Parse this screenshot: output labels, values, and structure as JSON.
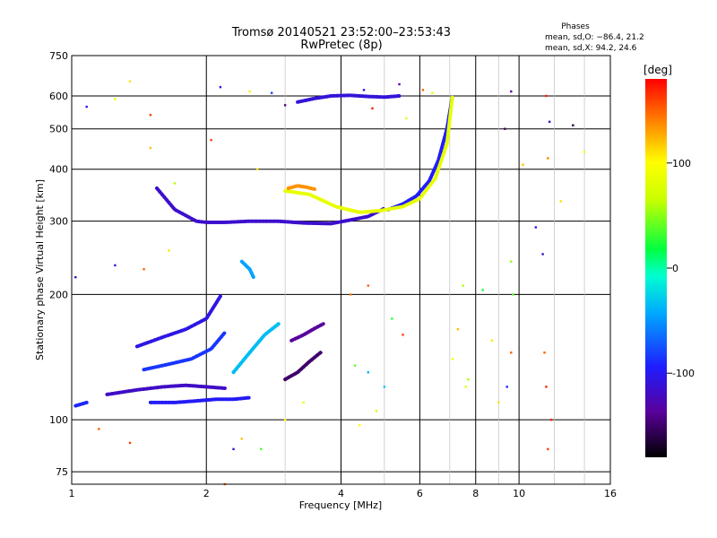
{
  "chart_data": {
    "type": "scatter",
    "title": "Tromsø 20140521 23:52:00–23:53:43",
    "subtitle": "RwPretec (8p)",
    "xlabel": "Frequency [MHz]",
    "ylabel": "Stationary phase Virtual Height [km]",
    "x_scale": "log",
    "y_scale": "log",
    "xlim": [
      1,
      16
    ],
    "ylim": [
      70,
      750
    ],
    "x_ticks": [
      1,
      2,
      4,
      6,
      8,
      10,
      16
    ],
    "y_ticks": [
      75,
      100,
      200,
      300,
      400,
      500,
      600,
      750
    ],
    "grid": true,
    "stats": {
      "heading": "Phases",
      "line_o": "mean, sd,O: −86.4, 21.2",
      "line_x": "mean, sd,X:  94.2, 24.6"
    },
    "colorbar": {
      "label": "[deg]",
      "range": [
        -180,
        180
      ],
      "ticks": [
        100,
        0,
        -100
      ],
      "colormap": "rainbow"
    },
    "traces": [
      {
        "x": [
          1.55,
          1.7,
          1.9,
          2.0,
          2.2,
          2.5,
          2.9,
          3.3,
          3.8,
          4.2,
          4.6,
          5.0
        ],
        "y": [
          360,
          320,
          300,
          298,
          298,
          300,
          300,
          297,
          296,
          302,
          308,
          322
        ],
        "phase": -115
      },
      {
        "x": [
          5.1,
          5.5,
          5.9,
          6.3,
          6.6,
          6.9,
          7.1
        ],
        "y": [
          320,
          330,
          345,
          375,
          420,
          500,
          600
        ],
        "phase": -95
      },
      {
        "x": [
          3.0,
          3.4,
          3.9,
          4.4,
          4.9,
          5.5,
          6.0,
          6.5,
          6.9,
          7.1
        ],
        "y": [
          355,
          348,
          325,
          315,
          318,
          325,
          340,
          380,
          460,
          600
        ],
        "phase": 85
      },
      {
        "x": [
          3.05,
          3.2,
          3.35,
          3.5
        ],
        "y": [
          360,
          365,
          362,
          358
        ],
        "phase": 135
      },
      {
        "x": [
          3.2,
          3.5,
          3.8,
          4.2,
          4.6,
          5.0,
          5.4
        ],
        "y": [
          580,
          592,
          600,
          602,
          598,
          596,
          600
        ],
        "phase": -110
      },
      {
        "x": [
          1.2,
          1.4,
          1.6,
          1.8,
          2.0,
          2.2
        ],
        "y": [
          115,
          118,
          120,
          121,
          120,
          119
        ],
        "phase": -118
      },
      {
        "x": [
          1.5,
          1.7,
          1.9,
          2.1,
          2.3,
          2.5
        ],
        "y": [
          110,
          110,
          111,
          112,
          112,
          113
        ],
        "phase": -98
      },
      {
        "x": [
          1.4,
          1.6,
          1.8,
          2.0,
          2.15
        ],
        "y": [
          150,
          158,
          165,
          175,
          198
        ],
        "phase": -105
      },
      {
        "x": [
          1.45,
          1.65,
          1.85,
          2.05,
          2.2
        ],
        "y": [
          132,
          136,
          140,
          148,
          162
        ],
        "phase": -85
      },
      {
        "x": [
          2.3,
          2.5,
          2.7,
          2.9
        ],
        "y": [
          130,
          145,
          160,
          170
        ],
        "phase": -35
      },
      {
        "x": [
          2.4,
          2.5,
          2.55
        ],
        "y": [
          240,
          230,
          220
        ],
        "phase": -45
      },
      {
        "x": [
          3.0,
          3.2,
          3.4,
          3.6
        ],
        "y": [
          125,
          130,
          138,
          145
        ],
        "phase": -150
      },
      {
        "x": [
          3.1,
          3.3,
          3.5,
          3.65
        ],
        "y": [
          155,
          160,
          166,
          170
        ],
        "phase": -135
      },
      {
        "x": [
          1.02,
          1.05,
          1.08
        ],
        "y": [
          108,
          109,
          110
        ],
        "phase": -90
      }
    ],
    "points": [
      {
        "x": 1.35,
        "y": 650,
        "phase": 110
      },
      {
        "x": 1.5,
        "y": 540,
        "phase": 160
      },
      {
        "x": 2.15,
        "y": 630,
        "phase": -100
      },
      {
        "x": 2.5,
        "y": 615,
        "phase": 105
      },
      {
        "x": 2.8,
        "y": 610,
        "phase": -80
      },
      {
        "x": 3.0,
        "y": 570,
        "phase": -140
      },
      {
        "x": 4.5,
        "y": 620,
        "phase": -110
      },
      {
        "x": 4.7,
        "y": 560,
        "phase": 170
      },
      {
        "x": 5.4,
        "y": 640,
        "phase": -130
      },
      {
        "x": 5.6,
        "y": 530,
        "phase": 90
      },
      {
        "x": 6.1,
        "y": 620,
        "phase": 150
      },
      {
        "x": 6.4,
        "y": 610,
        "phase": 80
      },
      {
        "x": 9.6,
        "y": 615,
        "phase": -130
      },
      {
        "x": 11.5,
        "y": 600,
        "phase": 170
      },
      {
        "x": 11.7,
        "y": 520,
        "phase": -120
      },
      {
        "x": 11.6,
        "y": 425,
        "phase": 140
      },
      {
        "x": 10.2,
        "y": 410,
        "phase": 120
      },
      {
        "x": 9.3,
        "y": 500,
        "phase": -150
      },
      {
        "x": 13.2,
        "y": 510,
        "phase": -160
      },
      {
        "x": 14.0,
        "y": 440,
        "phase": 90
      },
      {
        "x": 12.4,
        "y": 335,
        "phase": 110
      },
      {
        "x": 10.9,
        "y": 290,
        "phase": -100
      },
      {
        "x": 11.3,
        "y": 250,
        "phase": -115
      },
      {
        "x": 9.6,
        "y": 240,
        "phase": 50
      },
      {
        "x": 9.7,
        "y": 200,
        "phase": 40
      },
      {
        "x": 8.3,
        "y": 205,
        "phase": 20
      },
      {
        "x": 7.5,
        "y": 210,
        "phase": 60
      },
      {
        "x": 7.3,
        "y": 165,
        "phase": 120
      },
      {
        "x": 7.1,
        "y": 140,
        "phase": 95
      },
      {
        "x": 7.7,
        "y": 125,
        "phase": 60
      },
      {
        "x": 7.6,
        "y": 120,
        "phase": 80
      },
      {
        "x": 8.7,
        "y": 155,
        "phase": 110
      },
      {
        "x": 9.6,
        "y": 145,
        "phase": 150
      },
      {
        "x": 9.4,
        "y": 120,
        "phase": -90
      },
      {
        "x": 11.4,
        "y": 145,
        "phase": 150
      },
      {
        "x": 11.5,
        "y": 120,
        "phase": 170
      },
      {
        "x": 11.8,
        "y": 100,
        "phase": 170
      },
      {
        "x": 11.6,
        "y": 85,
        "phase": 160
      },
      {
        "x": 9.0,
        "y": 110,
        "phase": 110
      },
      {
        "x": 5.2,
        "y": 175,
        "phase": 30
      },
      {
        "x": 5.5,
        "y": 160,
        "phase": 160
      },
      {
        "x": 4.6,
        "y": 210,
        "phase": 150
      },
      {
        "x": 4.2,
        "y": 200,
        "phase": 140
      },
      {
        "x": 4.6,
        "y": 130,
        "phase": -40
      },
      {
        "x": 4.8,
        "y": 105,
        "phase": 80
      },
      {
        "x": 4.4,
        "y": 97,
        "phase": 100
      },
      {
        "x": 4.3,
        "y": 135,
        "phase": 40
      },
      {
        "x": 5.0,
        "y": 120,
        "phase": -30
      },
      {
        "x": 2.2,
        "y": 70,
        "phase": 150
      },
      {
        "x": 2.65,
        "y": 85,
        "phase": 35
      },
      {
        "x": 2.4,
        "y": 90,
        "phase": 120
      },
      {
        "x": 2.3,
        "y": 85,
        "phase": -110
      },
      {
        "x": 1.35,
        "y": 88,
        "phase": 160
      },
      {
        "x": 1.15,
        "y": 95,
        "phase": 150
      },
      {
        "x": 1.5,
        "y": 450,
        "phase": 120
      },
      {
        "x": 1.25,
        "y": 590,
        "phase": 90
      },
      {
        "x": 1.08,
        "y": 565,
        "phase": -100
      },
      {
        "x": 1.02,
        "y": 220,
        "phase": -120
      },
      {
        "x": 1.25,
        "y": 235,
        "phase": -110
      },
      {
        "x": 1.45,
        "y": 230,
        "phase": 150
      },
      {
        "x": 1.65,
        "y": 255,
        "phase": 110
      },
      {
        "x": 1.7,
        "y": 370,
        "phase": 60
      },
      {
        "x": 2.05,
        "y": 470,
        "phase": 160
      },
      {
        "x": 2.6,
        "y": 400,
        "phase": 110
      },
      {
        "x": 3.0,
        "y": 100,
        "phase": 100
      },
      {
        "x": 3.3,
        "y": 110,
        "phase": 90
      }
    ]
  }
}
